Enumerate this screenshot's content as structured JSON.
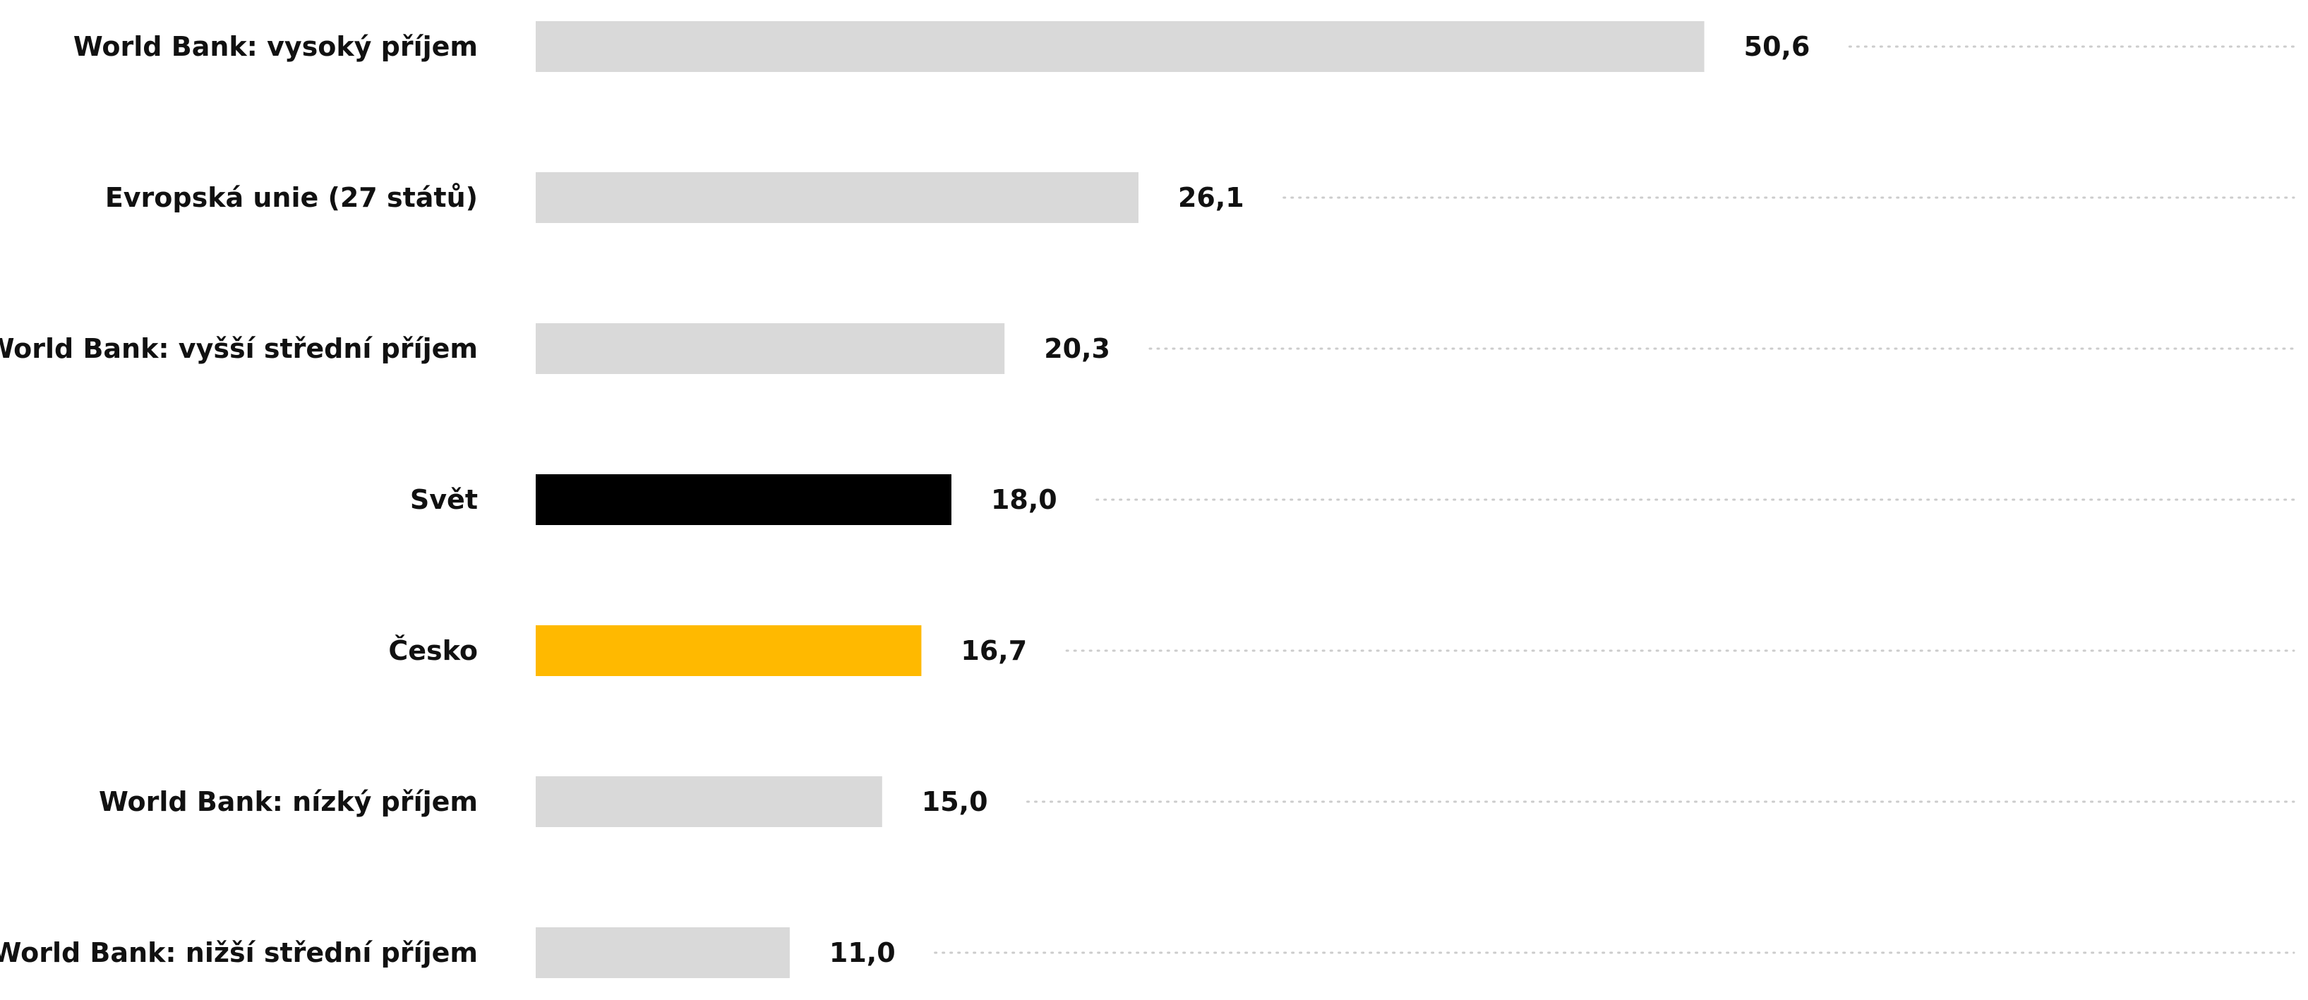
{
  "chart_data": {
    "type": "bar",
    "orientation": "horizontal",
    "categories": [
      "World Bank: vysoký příjem",
      "Evropská unie (27 států)",
      "World Bank: vyšší střední příjem",
      "Svět",
      "Česko",
      "World Bank: nízký příjem",
      "World Bank: nižší střední příjem"
    ],
    "values": [
      50.6,
      26.1,
      20.3,
      18.0,
      16.7,
      15.0,
      11.0
    ],
    "value_labels": [
      "50,6",
      "26,1",
      "20,3",
      "18,0",
      "16,7",
      "15,0",
      "11,0"
    ],
    "bar_colors": [
      "#d9d9d9",
      "#d9d9d9",
      "#d9d9d9",
      "#000000",
      "#ffb900",
      "#d9d9d9",
      "#d9d9d9"
    ],
    "title": "",
    "xlabel": "",
    "ylabel": "",
    "xlim": [
      0,
      100
    ],
    "grid": false,
    "legend": "none",
    "leader_lines": "dotted"
  }
}
